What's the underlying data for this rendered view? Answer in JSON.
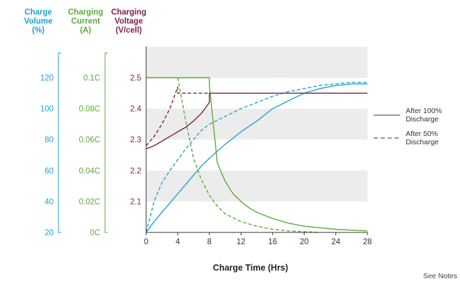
{
  "chart_data": {
    "type": "line",
    "xlabel": "Charge Time (Hrs)",
    "x_ticks": [
      "0",
      "4",
      "8",
      "12",
      "16",
      "20",
      "24",
      "28"
    ],
    "xlim": [
      0,
      28
    ],
    "grid": "alternating horizontal bands",
    "legend_position": "right",
    "axes": [
      {
        "id": "volume",
        "header": [
          "Charge",
          "Volume",
          "(%)"
        ],
        "color": "#1ba3d0",
        "ticks": [
          "20",
          "40",
          "60",
          "80",
          "100",
          "120"
        ],
        "range": [
          20,
          120
        ]
      },
      {
        "id": "current",
        "header": [
          "Charging",
          "Current",
          "(A)"
        ],
        "color": "#5aaa36",
        "ticks": [
          "0C",
          "0.02C",
          "0.04C",
          "0.06C",
          "0.08C",
          "0.1C"
        ],
        "range": [
          0,
          0.1
        ],
        "unit": "C"
      },
      {
        "id": "voltage",
        "header": [
          "Charging",
          "Voltage",
          "(V/cell)"
        ],
        "color": "#7a1f45",
        "ticks": [
          "2.1",
          "2.2",
          "2.3",
          "2.4",
          "2.5"
        ],
        "range": [
          2.0,
          2.5
        ]
      }
    ],
    "legend": [
      {
        "label": [
          "After 100%",
          "Discharge"
        ],
        "style": "solid"
      },
      {
        "label": [
          "After 50%",
          "Discharge"
        ],
        "style": "dashed"
      }
    ],
    "series": [
      {
        "axis": "volume",
        "discharge": "100%",
        "style": "solid",
        "color": "#1ba3d0",
        "x": [
          0,
          1,
          2,
          3,
          4,
          5,
          6,
          7,
          8,
          10,
          12,
          14,
          16,
          18,
          20,
          22,
          24,
          26,
          28
        ],
        "y": [
          20,
          27,
          33,
          39,
          45,
          51,
          57,
          63,
          68,
          77,
          85,
          92,
          100,
          105,
          110,
          113,
          115,
          116,
          116
        ]
      },
      {
        "axis": "volume",
        "discharge": "50%",
        "style": "dashed",
        "color": "#1ba3d0",
        "x": [
          0,
          1,
          2,
          3,
          4,
          5,
          6,
          7,
          8,
          10,
          12,
          14,
          16,
          18,
          20,
          22,
          24,
          26,
          28
        ],
        "y": [
          20,
          40,
          52,
          60,
          67,
          74,
          80,
          86,
          90,
          95,
          100,
          104,
          108,
          111,
          113,
          115,
          116,
          117,
          117
        ]
      },
      {
        "axis": "current",
        "discharge": "100%",
        "style": "solid",
        "color": "#5aaa36",
        "x": [
          0,
          8,
          8,
          9,
          10,
          11,
          12,
          13,
          14,
          16,
          18,
          20,
          22,
          24,
          26,
          28
        ],
        "y": [
          0.1,
          0.1,
          0.095,
          0.045,
          0.033,
          0.025,
          0.02,
          0.016,
          0.013,
          0.009,
          0.006,
          0.004,
          0.003,
          0.002,
          0.0015,
          0.001
        ]
      },
      {
        "axis": "current",
        "discharge": "50%",
        "style": "dashed",
        "color": "#5aaa36",
        "x": [
          4,
          4,
          5,
          6,
          7,
          8,
          9,
          10,
          12,
          14,
          16,
          18,
          20,
          22
        ],
        "y": [
          0.1,
          0.1,
          0.072,
          0.048,
          0.034,
          0.024,
          0.017,
          0.012,
          0.007,
          0.004,
          0.002,
          0.001,
          0.0005,
          0
        ]
      },
      {
        "axis": "voltage",
        "discharge": "100%",
        "style": "solid",
        "color": "#7a1f45",
        "x": [
          0,
          1,
          2,
          3,
          4,
          5,
          6,
          7,
          8,
          8,
          10,
          12,
          16,
          20,
          24,
          28
        ],
        "y": [
          2.27,
          2.28,
          2.295,
          2.31,
          2.325,
          2.34,
          2.36,
          2.385,
          2.42,
          2.45,
          2.45,
          2.45,
          2.45,
          2.45,
          2.45,
          2.45
        ]
      },
      {
        "axis": "voltage",
        "discharge": "50%",
        "style": "dashed",
        "color": "#7a1f45",
        "x": [
          0,
          1,
          2,
          3,
          4,
          4,
          6,
          8
        ],
        "y": [
          2.28,
          2.31,
          2.35,
          2.4,
          2.47,
          2.45,
          2.45,
          2.45
        ]
      }
    ]
  },
  "footer": {
    "see_notes": "See Notes"
  }
}
